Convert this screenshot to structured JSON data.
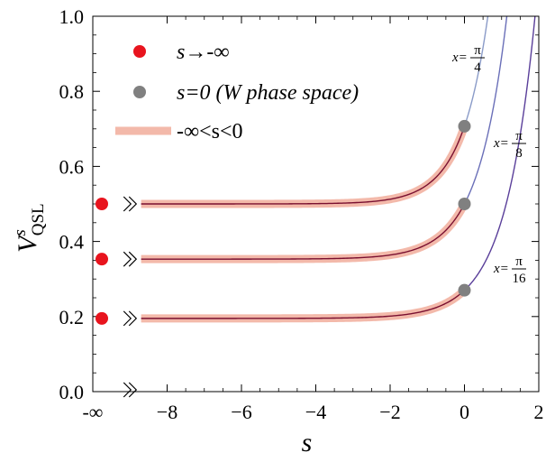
{
  "chart_data": {
    "type": "line",
    "xlabel": "s",
    "ylabel_main": "V",
    "ylabel_sup": "s",
    "ylabel_sub": "QSL",
    "xlim": [
      -10,
      2
    ],
    "ylim": [
      0,
      1
    ],
    "x_ticks": [
      {
        "value": -10,
        "label": "-∞"
      },
      {
        "value": -8,
        "label": "−8"
      },
      {
        "value": -6,
        "label": "−6"
      },
      {
        "value": -4,
        "label": "−4"
      },
      {
        "value": -2,
        "label": "−2"
      },
      {
        "value": 0,
        "label": "0"
      },
      {
        "value": 2,
        "label": "2"
      }
    ],
    "y_ticks": [
      {
        "value": 0.0,
        "label": "0.0"
      },
      {
        "value": 0.2,
        "label": "0.2"
      },
      {
        "value": 0.4,
        "label": "0.4"
      },
      {
        "value": 0.6,
        "label": "0.6"
      },
      {
        "value": 0.8,
        "label": "0.8"
      },
      {
        "value": 1.0,
        "label": "1.0"
      }
    ],
    "axis_break_x": -9,
    "series": [
      {
        "x_label": "x=",
        "x_num": "π",
        "x_den": "4",
        "limit_value": 0.5,
        "value_at_zero": 0.707,
        "growth_rate": 1.4,
        "color": "#8a9bc8"
      },
      {
        "x_label": "x=",
        "x_num": "π",
        "x_den": "8",
        "limit_value": 0.353,
        "value_at_zero": 0.5,
        "growth_rate": 1.3,
        "color": "#6a6fb8"
      },
      {
        "x_label": "x=",
        "x_num": "π",
        "x_den": "16",
        "limit_value": 0.195,
        "value_at_zero": 0.27,
        "growth_rate": 1.25,
        "color": "#5a3f9a"
      }
    ],
    "legend": {
      "position": "top-left",
      "entries": [
        {
          "label": "s→-∞",
          "marker": "red-dot"
        },
        {
          "label": "s=0 (W phase space)",
          "marker": "gray-dot"
        },
        {
          "label": "-∞<s<0",
          "marker": "pink-band"
        }
      ]
    },
    "colors": {
      "red_dot": "#e8141e",
      "gray_dot": "#808080",
      "pink_band": "#f3b9aa",
      "curve_dark": "#7a1030"
    }
  }
}
